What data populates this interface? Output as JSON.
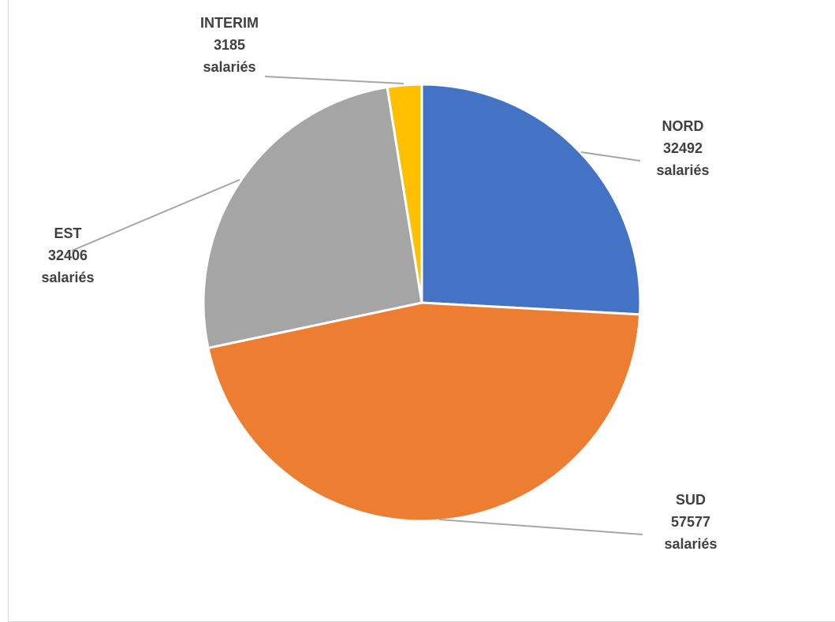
{
  "chart_data": {
    "type": "pie",
    "title": "",
    "unit": "salariés",
    "slices": [
      {
        "label": "NORD",
        "value": 32492,
        "color": "#4472C4"
      },
      {
        "label": "SUD",
        "value": 57577,
        "color": "#ED7D31"
      },
      {
        "label": "EST",
        "value": 32406,
        "color": "#A5A5A5"
      },
      {
        "label": "INTERIM",
        "value": 3185,
        "color": "#FFC000"
      }
    ],
    "start_angle_deg": 0,
    "direction": "clockwise",
    "data_labels": "category, value and unit, outside with leader lines",
    "legend": "none"
  }
}
